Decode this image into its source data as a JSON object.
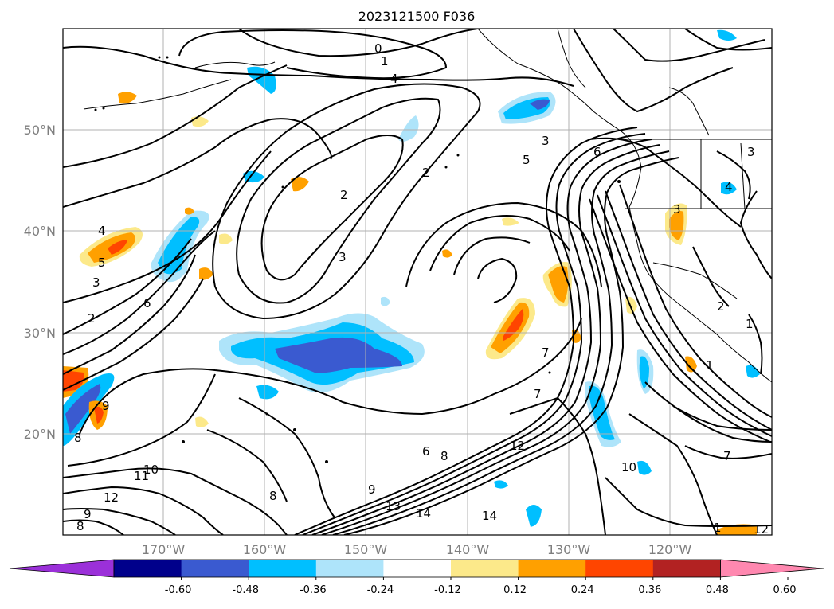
{
  "title": "2023121500 F036",
  "map": {
    "lat_labels": [
      "50°N",
      "40°N",
      "30°N",
      "20°N"
    ],
    "lon_labels": [
      "170°W",
      "160°W",
      "150°W",
      "140°W",
      "130°W",
      "120°W"
    ],
    "grid": true,
    "projection": "plate carree",
    "region": "North-east Pacific / western North America"
  },
  "contours": {
    "color": "#000000",
    "labels": [
      "0",
      "1",
      "4",
      "3",
      "5",
      "6",
      "2",
      "2",
      "3",
      "4",
      "5",
      "3",
      "2",
      "6",
      "9",
      "8",
      "7",
      "7",
      "6",
      "8",
      "12",
      "10",
      "11",
      "12",
      "9",
      "13",
      "14",
      "14",
      "9",
      "8",
      "8",
      "7",
      "10",
      "1",
      "1",
      "3",
      "4",
      "3",
      "12",
      "1",
      "2"
    ]
  },
  "colorbar": {
    "ticks": [
      "-0.60",
      "-0.48",
      "-0.36",
      "-0.24",
      "-0.12",
      "0.12",
      "0.24",
      "0.36",
      "0.48",
      "0.60"
    ],
    "colors": [
      "#9b30d9",
      "#00008b",
      "#3a5ad0",
      "#00bfff",
      "#aee4fa",
      "#ffffff",
      "#fce98a",
      "#ffa000",
      "#ff4500",
      "#b22222",
      "#ff88b0"
    ]
  }
}
